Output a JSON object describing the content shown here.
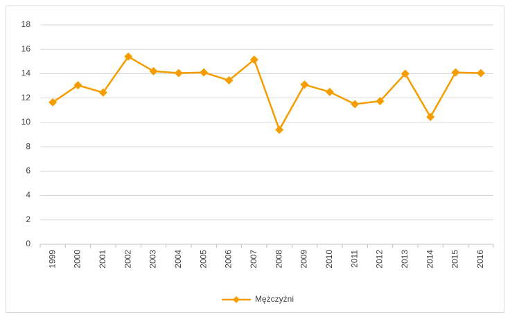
{
  "chart_data": {
    "type": "line",
    "categories": [
      "1999",
      "2000",
      "2001",
      "2002",
      "2003",
      "2004",
      "2005",
      "2006",
      "2007",
      "2008",
      "2009",
      "2010",
      "2011",
      "2012",
      "2013",
      "2014",
      "2015",
      "2016"
    ],
    "series": [
      {
        "name": "Mężczyźni",
        "color": "#f59c00",
        "values": [
          11.65,
          13.05,
          12.45,
          15.4,
          14.2,
          14.05,
          14.1,
          13.45,
          15.15,
          9.4,
          13.1,
          12.5,
          11.5,
          11.75,
          14.0,
          10.45,
          14.1,
          14.05
        ]
      }
    ],
    "ylim": [
      0,
      18
    ],
    "yticks": [
      0,
      2,
      4,
      6,
      8,
      10,
      12,
      14,
      16,
      18
    ],
    "grid": true,
    "legend": "bottom"
  }
}
